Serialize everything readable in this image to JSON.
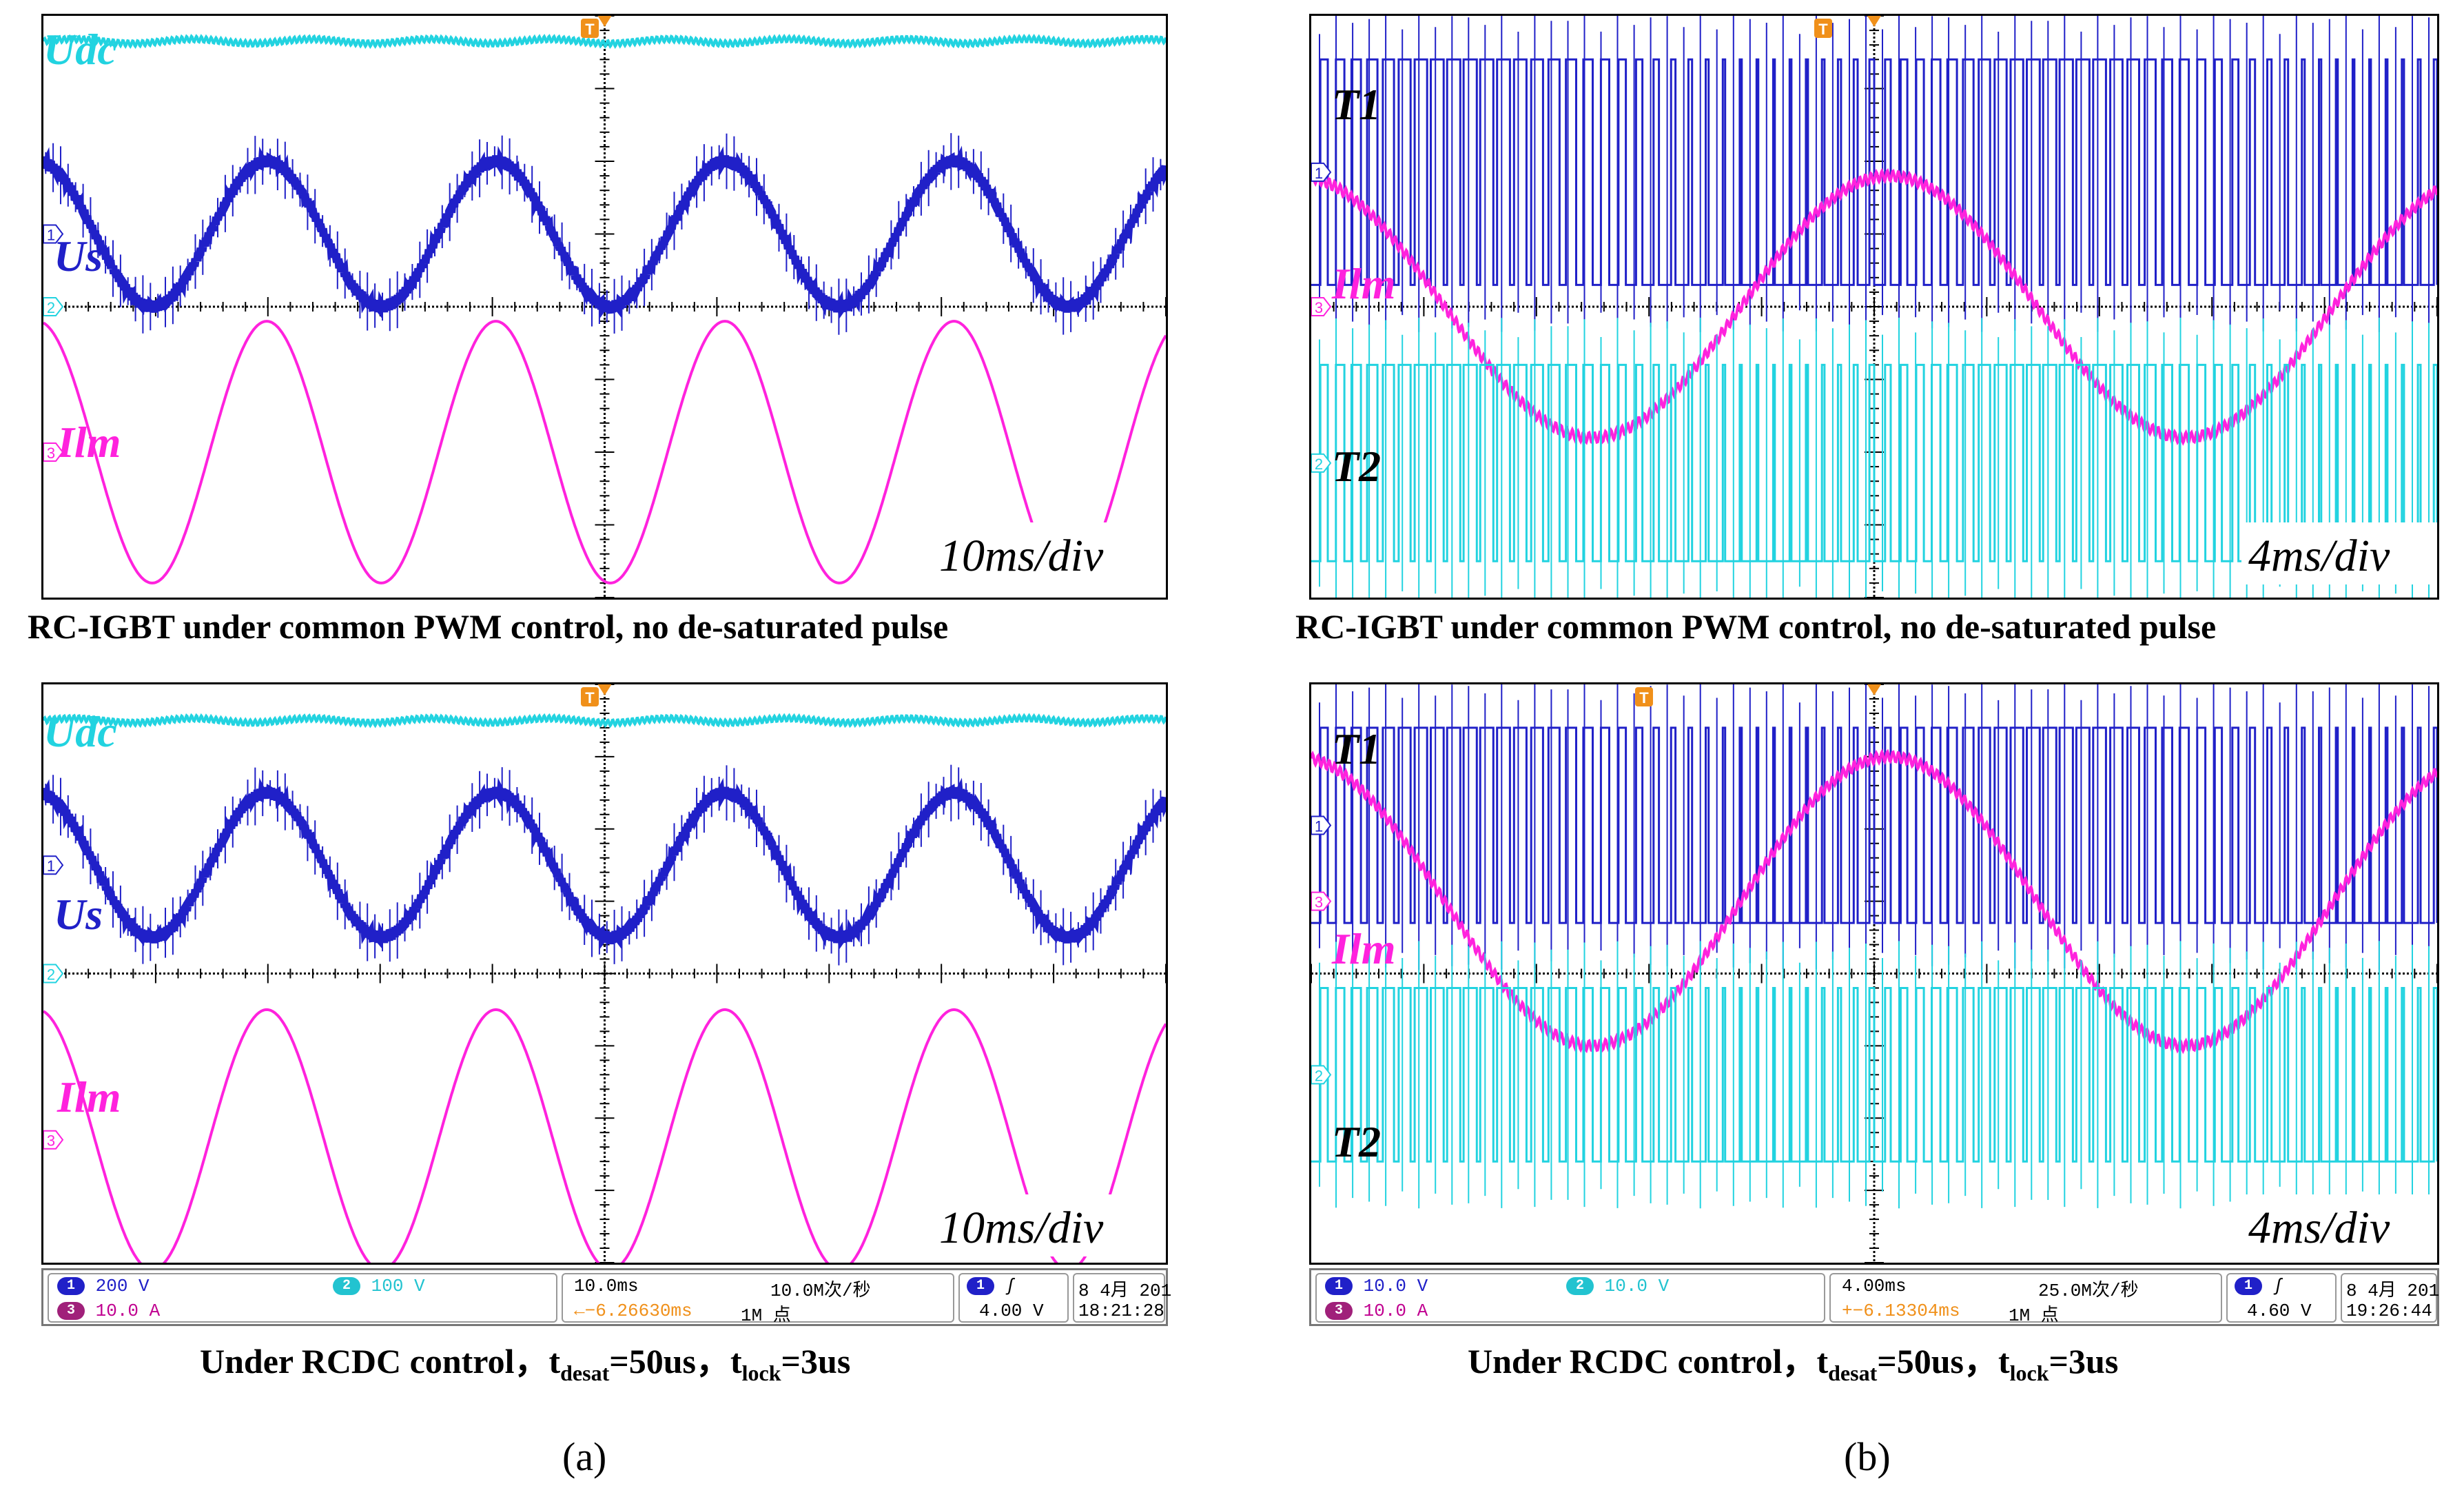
{
  "colors": {
    "ch1": "#2020c8",
    "ch2": "#22d3e0",
    "ch3": "#ff22dd",
    "grid": "#000000",
    "trigger": "#f0901a"
  },
  "panels": [
    {
      "id": "a1",
      "captionText": "RC-IGBT under common PWM control, no de-saturated pulse",
      "timebaseLabel": "10ms/div",
      "traceLabels": {
        "top": "Udc",
        "mid": "Us",
        "low": "Ilm"
      },
      "chart_data": {
        "type": "line",
        "title": "RC-IGBT under common PWM control, no de-saturated pulse",
        "xlabel": "time",
        "timebase": "10ms/div",
        "divisions_x": 10,
        "series": [
          {
            "name": "Udc",
            "channel": 2,
            "kind": "dc_ripple",
            "level_div": 3.65
          },
          {
            "name": "Us",
            "channel": 1,
            "kind": "sine_pwm_spikes",
            "center_div": 1.0,
            "amplitude_div": 1.0,
            "cycles": 4.9
          },
          {
            "name": "Ilm",
            "channel": 3,
            "kind": "sine",
            "center_div": -2.0,
            "amplitude_div": 1.8,
            "cycles": 4.9
          }
        ]
      }
    },
    {
      "id": "b1",
      "captionText": "RC-IGBT under common PWM control, no de-saturated pulse",
      "timebaseLabel": "4ms/div",
      "traceLabels": {
        "top": "T1",
        "mid": "Ilm",
        "low": "T2"
      },
      "chart_data": {
        "type": "line",
        "title": "RC-IGBT under common PWM control, no de-saturated pulse",
        "xlabel": "time",
        "timebase": "4ms/div",
        "divisions_x": 10,
        "series": [
          {
            "name": "T1",
            "channel": 1,
            "kind": "pwm",
            "high_div": 3.4,
            "low_div": 0.3,
            "pulses": 68
          },
          {
            "name": "Ilm",
            "channel": 3,
            "kind": "sine_ripple",
            "center_div": 0.0,
            "amplitude_div": 1.8,
            "cycles": 1.9
          },
          {
            "name": "T2",
            "channel": 2,
            "kind": "pwm",
            "high_div": -0.8,
            "low_div": -3.5,
            "pulses": 68
          }
        ]
      }
    },
    {
      "id": "a2",
      "captionText": "",
      "timebaseLabel": "10ms/div",
      "traceLabels": {
        "top": "Udc",
        "mid": "Us",
        "low": "Ilm"
      },
      "chart_data": {
        "type": "line",
        "title": "Under RCDC control, tdesat=50us, tlock=3us",
        "xlabel": "time",
        "timebase": "10ms/div",
        "divisions_x": 10,
        "series": [
          {
            "name": "Udc",
            "channel": 2,
            "kind": "dc_ripple",
            "level_div": 3.5
          },
          {
            "name": "Us",
            "channel": 1,
            "kind": "sine_pwm_spikes",
            "center_div": 1.5,
            "amplitude_div": 1.0,
            "cycles": 4.9
          },
          {
            "name": "Ilm",
            "channel": 3,
            "kind": "sine",
            "center_div": -2.3,
            "amplitude_div": 1.8,
            "cycles": 4.9
          }
        ]
      }
    },
    {
      "id": "b2",
      "captionText": "",
      "timebaseLabel": "4ms/div",
      "traceLabels": {
        "top": "T1",
        "mid": "Ilm",
        "low": "T2"
      },
      "chart_data": {
        "type": "line",
        "title": "Under RCDC control, tdesat=50us, tlock=3us",
        "xlabel": "time",
        "timebase": "4ms/div",
        "divisions_x": 10,
        "series": [
          {
            "name": "T1",
            "channel": 1,
            "kind": "pwm",
            "high_div": 3.4,
            "low_div": 0.7,
            "pulses": 68
          },
          {
            "name": "Ilm",
            "channel": 3,
            "kind": "sine_ripple",
            "center_div": 1.0,
            "amplitude_div": 2.0,
            "cycles": 1.9
          },
          {
            "name": "T2",
            "channel": 2,
            "kind": "pwm",
            "high_div": -0.2,
            "low_div": -2.6,
            "pulses": 68
          }
        ]
      }
    }
  ],
  "statusbars": [
    {
      "ch1": "200 V",
      "ch2": "100 V",
      "ch3": "10.0 A",
      "timebase": "10.0ms",
      "rate": "10.0M次/秒",
      "offset": "←−6.26630ms",
      "points": "1M 点",
      "trig_level": "4.00 V",
      "date": "8 4月  201",
      "time": "18:21:28"
    },
    {
      "ch1": "10.0 V",
      "ch2": "10.0 V",
      "ch3": "10.0 A",
      "timebase": "4.00ms",
      "rate": "25.0M次/秒",
      "offset": "+−6.13304ms",
      "points": "1M 点",
      "trig_level": "4.60 V",
      "date": "8 4月  201",
      "time": "19:26:44"
    }
  ],
  "bottomCaption": {
    "prefix": "Under RCDC control，t",
    "desat": "desat",
    "mid": "=50us，t",
    "lock": "lock",
    "suffix": "=3us"
  },
  "subLabels": {
    "a": "(a)",
    "b": "(b)"
  },
  "channelMarkers": [
    "1",
    "2",
    "3"
  ],
  "triggerMarker": "T"
}
